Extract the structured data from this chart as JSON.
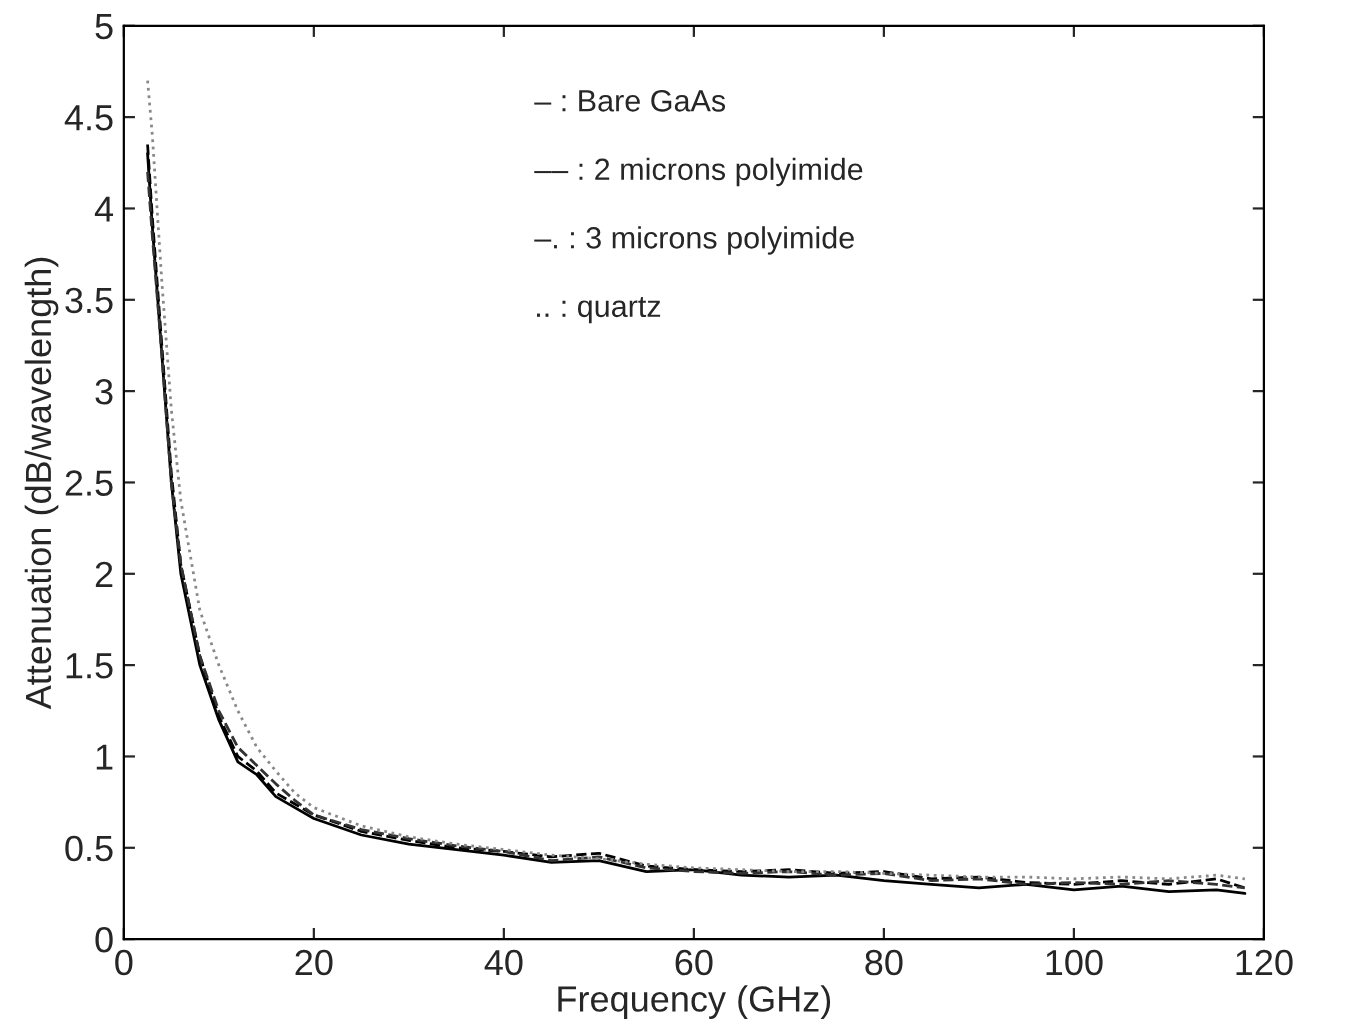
{
  "chart_data": {
    "type": "line",
    "xlabel": "Frequency (GHz)",
    "ylabel": "Attenuation (dB/wavelength)",
    "xlim": [
      0,
      120
    ],
    "ylim": [
      0,
      5
    ],
    "xticks": [
      0,
      20,
      40,
      60,
      80,
      100,
      120
    ],
    "yticks": [
      0,
      0.5,
      1,
      1.5,
      2,
      2.5,
      3,
      3.5,
      4,
      4.5,
      5
    ],
    "grid": false,
    "legend": false,
    "annotations": [
      "– : Bare GaAs",
      "–– : 2 microns polyimide",
      "–. : 3 microns polyimide",
      ".. : quartz"
    ],
    "series": [
      {
        "color": "#000000",
        "line_style": "solid",
        "x": [
          2.5,
          3,
          4,
          5,
          6,
          8,
          10,
          12,
          14,
          16,
          18,
          20,
          25,
          30,
          35,
          40,
          45,
          50,
          55,
          60,
          65,
          70,
          75,
          80,
          85,
          90,
          95,
          100,
          105,
          110,
          115,
          118
        ],
        "values": [
          4.3,
          3.9,
          3.2,
          2.5,
          2.0,
          1.5,
          1.2,
          0.97,
          0.9,
          0.78,
          0.72,
          0.66,
          0.57,
          0.52,
          0.49,
          0.46,
          0.42,
          0.43,
          0.37,
          0.38,
          0.35,
          0.34,
          0.35,
          0.32,
          0.3,
          0.28,
          0.3,
          0.27,
          0.29,
          0.26,
          0.27,
          0.25
        ]
      },
      {
        "color": "#000000",
        "line_style": "dashed",
        "x": [
          2.5,
          3,
          4,
          5,
          6,
          8,
          10,
          12,
          14,
          16,
          18,
          20,
          25,
          30,
          35,
          40,
          45,
          50,
          55,
          60,
          65,
          70,
          75,
          80,
          85,
          90,
          95,
          100,
          105,
          110,
          115,
          118
        ],
        "values": [
          4.35,
          3.95,
          3.25,
          2.55,
          2.05,
          1.55,
          1.22,
          1.0,
          0.92,
          0.8,
          0.74,
          0.68,
          0.59,
          0.54,
          0.5,
          0.48,
          0.45,
          0.47,
          0.4,
          0.38,
          0.37,
          0.38,
          0.36,
          0.37,
          0.33,
          0.34,
          0.31,
          0.3,
          0.32,
          0.3,
          0.33,
          0.28
        ]
      },
      {
        "color": "#333333",
        "line_style": "dashed",
        "x": [
          2.5,
          3,
          4,
          5,
          6,
          8,
          10,
          12,
          14,
          16,
          18,
          20,
          25,
          30,
          35,
          40,
          45,
          50,
          55,
          60,
          65,
          70,
          75,
          80,
          85,
          90,
          95,
          100,
          105,
          110,
          115,
          118
        ],
        "values": [
          4.2,
          3.85,
          3.2,
          2.5,
          2.05,
          1.55,
          1.25,
          1.05,
          0.95,
          0.85,
          0.76,
          0.68,
          0.6,
          0.55,
          0.51,
          0.48,
          0.43,
          0.45,
          0.39,
          0.37,
          0.36,
          0.37,
          0.35,
          0.36,
          0.32,
          0.33,
          0.3,
          0.31,
          0.3,
          0.32,
          0.3,
          0.28
        ]
      },
      {
        "color": "#888888",
        "line_style": "dotted",
        "x": [
          2.5,
          3,
          4,
          5,
          6,
          8,
          10,
          12,
          14,
          16,
          18,
          20,
          25,
          30,
          35,
          40,
          45,
          50,
          55,
          60,
          65,
          70,
          75,
          80,
          85,
          90,
          95,
          100,
          105,
          110,
          115,
          118
        ],
        "values": [
          4.7,
          4.4,
          3.6,
          2.9,
          2.4,
          1.8,
          1.5,
          1.25,
          1.05,
          0.92,
          0.8,
          0.72,
          0.62,
          0.56,
          0.52,
          0.49,
          0.46,
          0.44,
          0.41,
          0.39,
          0.38,
          0.37,
          0.37,
          0.36,
          0.35,
          0.34,
          0.34,
          0.33,
          0.34,
          0.33,
          0.35,
          0.33
        ]
      }
    ]
  }
}
